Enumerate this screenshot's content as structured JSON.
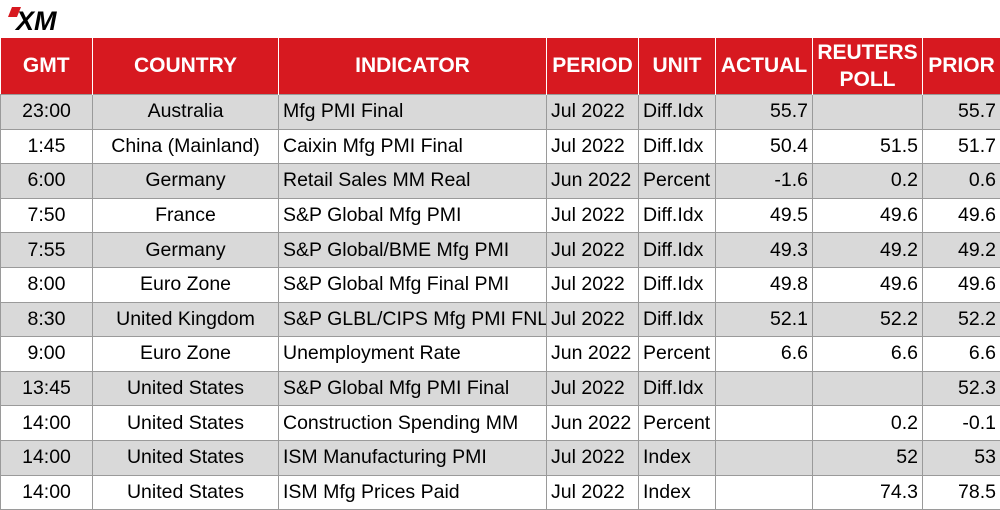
{
  "brand": {
    "logo_text": "XM",
    "logo_icon": "xm-logo",
    "accent_color": "#d71920"
  },
  "columns": [
    "GMT",
    "COUNTRY",
    "INDICATOR",
    "PERIOD",
    "UNIT",
    "ACTUAL",
    "REUTERS POLL",
    "PRIOR"
  ],
  "rows": [
    {
      "gmt": "23:00",
      "country": "Australia",
      "indicator": "Mfg PMI Final",
      "period": "Jul 2022",
      "unit": "Diff.Idx",
      "actual": "55.7",
      "poll": "",
      "prior": "55.7"
    },
    {
      "gmt": "1:45",
      "country": "China (Mainland)",
      "indicator": "Caixin Mfg PMI Final",
      "period": "Jul 2022",
      "unit": "Diff.Idx",
      "actual": "50.4",
      "poll": "51.5",
      "prior": "51.7"
    },
    {
      "gmt": "6:00",
      "country": "Germany",
      "indicator": "Retail Sales MM Real",
      "period": "Jun 2022",
      "unit": "Percent",
      "actual": "-1.6",
      "poll": "0.2",
      "prior": "0.6"
    },
    {
      "gmt": "7:50",
      "country": "France",
      "indicator": "S&P Global Mfg PMI",
      "period": "Jul 2022",
      "unit": "Diff.Idx",
      "actual": "49.5",
      "poll": "49.6",
      "prior": "49.6"
    },
    {
      "gmt": "7:55",
      "country": "Germany",
      "indicator": "S&P Global/BME Mfg PMI",
      "period": "Jul 2022",
      "unit": "Diff.Idx",
      "actual": "49.3",
      "poll": "49.2",
      "prior": "49.2"
    },
    {
      "gmt": "8:00",
      "country": "Euro Zone",
      "indicator": "S&P Global Mfg Final PMI",
      "period": "Jul 2022",
      "unit": "Diff.Idx",
      "actual": "49.8",
      "poll": "49.6",
      "prior": "49.6"
    },
    {
      "gmt": "8:30",
      "country": "United Kingdom",
      "indicator": "S&P GLBL/CIPS Mfg PMI FNL",
      "period": "Jul 2022",
      "unit": "Diff.Idx",
      "actual": "52.1",
      "poll": "52.2",
      "prior": "52.2"
    },
    {
      "gmt": "9:00",
      "country": "Euro Zone",
      "indicator": "Unemployment Rate",
      "period": "Jun 2022",
      "unit": "Percent",
      "actual": "6.6",
      "poll": "6.6",
      "prior": "6.6"
    },
    {
      "gmt": "13:45",
      "country": "United States",
      "indicator": "S&P Global Mfg PMI Final",
      "period": "Jul 2022",
      "unit": "Diff.Idx",
      "actual": "",
      "poll": "",
      "prior": "52.3"
    },
    {
      "gmt": "14:00",
      "country": "United States",
      "indicator": "Construction Spending MM",
      "period": "Jun 2022",
      "unit": "Percent",
      "actual": "",
      "poll": "0.2",
      "prior": "-0.1"
    },
    {
      "gmt": "14:00",
      "country": "United States",
      "indicator": "ISM Manufacturing PMI",
      "period": "Jul 2022",
      "unit": "Index",
      "actual": "",
      "poll": "52",
      "prior": "53"
    },
    {
      "gmt": "14:00",
      "country": "United States",
      "indicator": "ISM Mfg Prices Paid",
      "period": "Jul 2022",
      "unit": "Index",
      "actual": "",
      "poll": "74.3",
      "prior": "78.5"
    }
  ]
}
